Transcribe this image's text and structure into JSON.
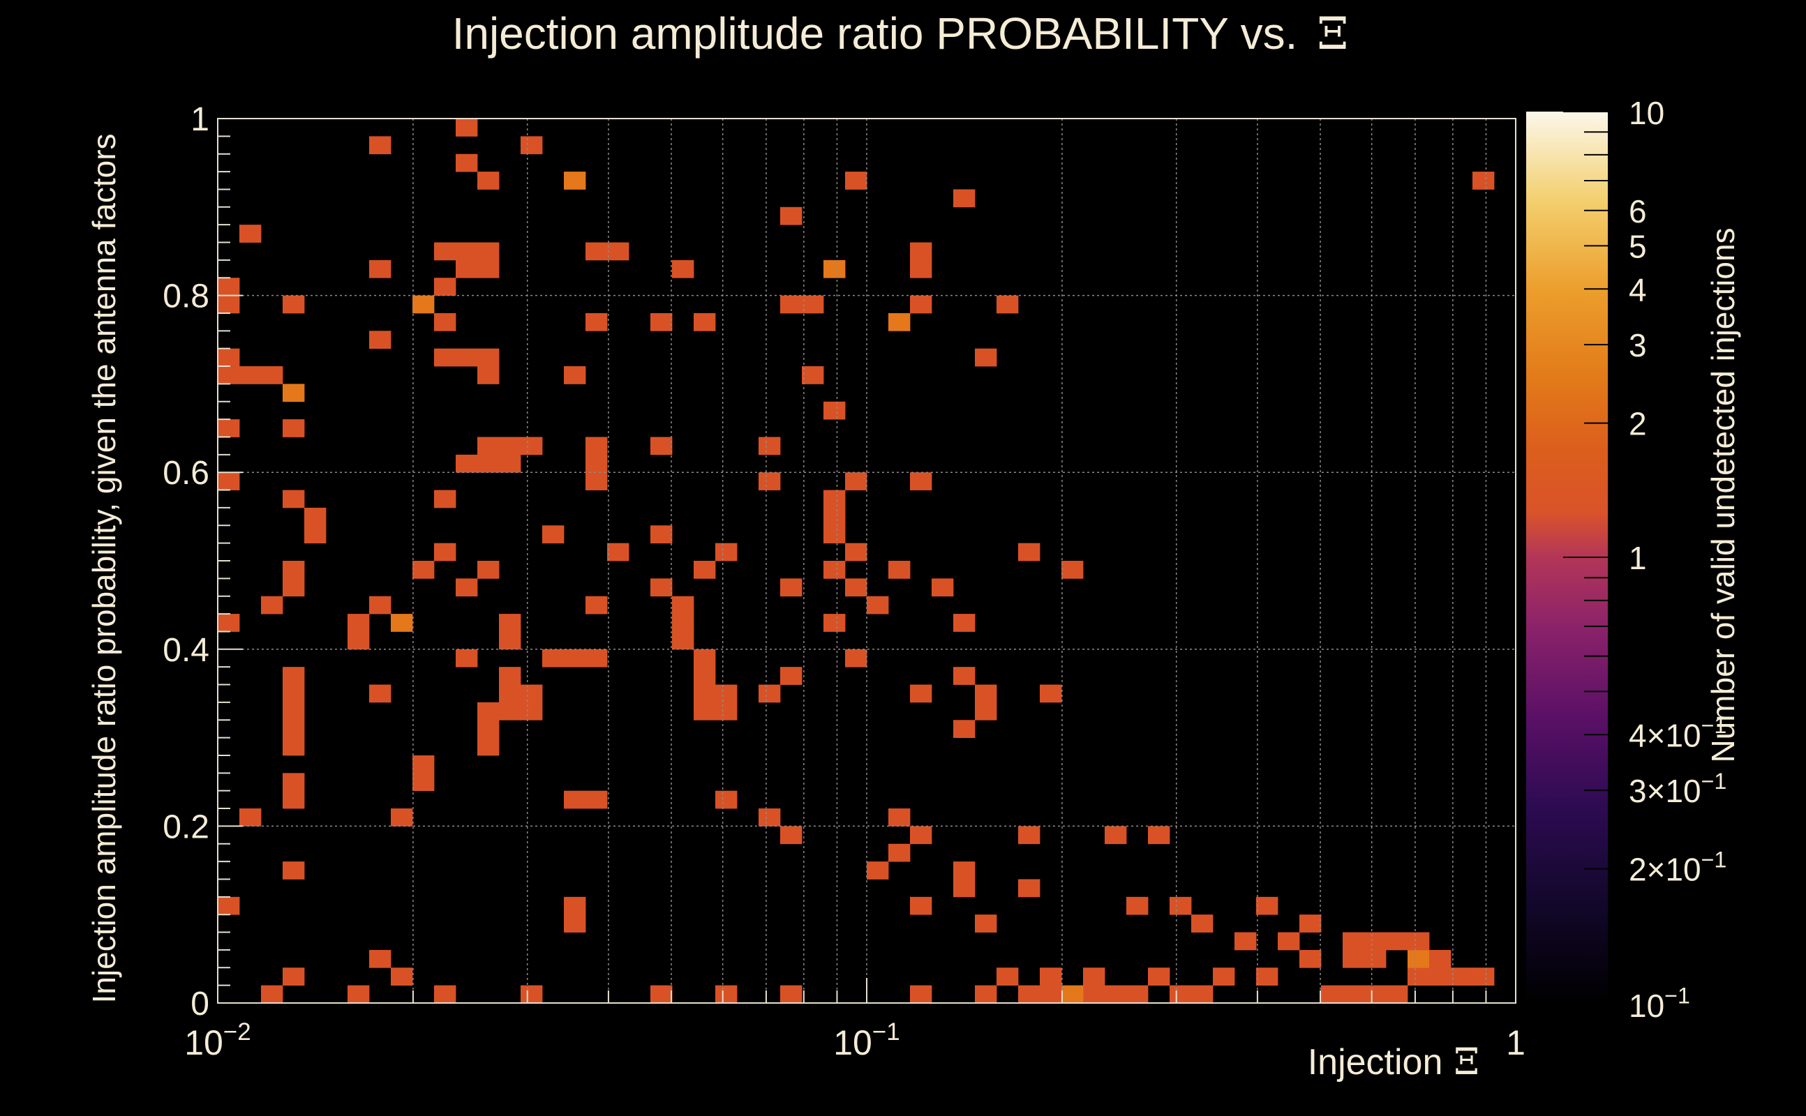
{
  "chart_data": {
    "type": "heatmap",
    "title": "Injection amplitude ratio PROBABILITY vs.",
    "title_symbol": "Ξ",
    "xlabel": "Injection",
    "xlabel_symbol": "Ξ",
    "ylabel": "Injection amplitude ratio probability, given the antenna factors",
    "zlabel": "Number of valid undetected injections",
    "x_scale": "log",
    "x_range": [
      0.01,
      1
    ],
    "y_range": [
      0,
      1
    ],
    "z_scale": "log",
    "z_range": [
      0.1,
      10
    ],
    "x_bins": 60,
    "y_bins": 50,
    "grid": true,
    "x_ticks": [
      {
        "value": 0.01,
        "mant": "10",
        "exp": "−2"
      },
      {
        "value": 0.1,
        "mant": "10",
        "exp": "−1"
      },
      {
        "value": 1,
        "mant": "1",
        "exp": ""
      }
    ],
    "y_ticks": [
      {
        "value": 0,
        "label": "0"
      },
      {
        "value": 0.2,
        "label": "0.2"
      },
      {
        "value": 0.4,
        "label": "0.4"
      },
      {
        "value": 0.6,
        "label": "0.6"
      },
      {
        "value": 0.8,
        "label": "0.8"
      },
      {
        "value": 1,
        "label": "1"
      }
    ],
    "z_ticks": [
      {
        "value": 10,
        "mant": "10",
        "exp": ""
      },
      {
        "value": 6,
        "mant": "6",
        "exp": ""
      },
      {
        "value": 5,
        "mant": "5",
        "exp": ""
      },
      {
        "value": 4,
        "mant": "4",
        "exp": ""
      },
      {
        "value": 3,
        "mant": "3",
        "exp": ""
      },
      {
        "value": 2,
        "mant": "2",
        "exp": ""
      },
      {
        "value": 1,
        "mant": "1",
        "exp": ""
      },
      {
        "value": 0.4,
        "mant": "4×10",
        "exp": "−1"
      },
      {
        "value": 0.3,
        "mant": "3×10",
        "exp": "−1"
      },
      {
        "value": 0.2,
        "mant": "2×10",
        "exp": "−1"
      },
      {
        "value": 0.1,
        "mant": "10",
        "exp": "−1"
      }
    ],
    "colorscale": [
      "#000000",
      "#1b0b3d",
      "#4b0c6b",
      "#781c6d",
      "#a52c60",
      "#c8414a",
      "#d35a1e",
      "#e08a1c",
      "#f1c446",
      "#fafae6"
    ],
    "cells": [
      [
        11,
        49,
        1
      ],
      [
        7,
        48,
        1
      ],
      [
        14,
        48,
        1
      ],
      [
        11,
        47,
        1
      ],
      [
        12,
        46,
        1
      ],
      [
        16,
        46,
        2
      ],
      [
        29,
        46,
        1
      ],
      [
        34,
        45,
        1
      ],
      [
        26,
        44,
        1
      ],
      [
        1,
        43,
        1
      ],
      [
        10,
        42,
        1
      ],
      [
        11,
        42,
        1
      ],
      [
        12,
        42,
        1
      ],
      [
        17,
        42,
        1
      ],
      [
        18,
        42,
        1
      ],
      [
        32,
        42,
        1
      ],
      [
        7,
        41,
        1
      ],
      [
        11,
        41,
        1
      ],
      [
        12,
        41,
        1
      ],
      [
        21,
        41,
        1
      ],
      [
        28,
        41,
        2
      ],
      [
        32,
        41,
        1
      ],
      [
        0,
        40,
        1
      ],
      [
        10,
        40,
        1
      ],
      [
        0,
        39,
        1
      ],
      [
        3,
        39,
        1
      ],
      [
        9,
        39,
        2
      ],
      [
        26,
        39,
        1
      ],
      [
        27,
        39,
        1
      ],
      [
        32,
        39,
        1
      ],
      [
        36,
        39,
        1
      ],
      [
        10,
        38,
        1
      ],
      [
        17,
        38,
        1
      ],
      [
        20,
        38,
        1
      ],
      [
        22,
        38,
        1
      ],
      [
        31,
        38,
        2
      ],
      [
        7,
        37,
        1
      ],
      [
        0,
        36,
        1
      ],
      [
        10,
        36,
        1
      ],
      [
        11,
        36,
        1
      ],
      [
        12,
        36,
        1
      ],
      [
        35,
        36,
        1
      ],
      [
        0,
        35,
        1
      ],
      [
        1,
        35,
        1
      ],
      [
        2,
        35,
        1
      ],
      [
        12,
        35,
        1
      ],
      [
        16,
        35,
        1
      ],
      [
        27,
        35,
        1
      ],
      [
        3,
        34,
        2
      ],
      [
        28,
        33,
        1
      ],
      [
        0,
        32,
        1
      ],
      [
        3,
        32,
        1
      ],
      [
        12,
        31,
        1
      ],
      [
        13,
        31,
        1
      ],
      [
        14,
        31,
        1
      ],
      [
        17,
        31,
        1
      ],
      [
        20,
        31,
        1
      ],
      [
        25,
        31,
        1
      ],
      [
        11,
        30,
        1
      ],
      [
        12,
        30,
        1
      ],
      [
        13,
        30,
        1
      ],
      [
        17,
        30,
        1
      ],
      [
        0,
        29,
        1
      ],
      [
        17,
        29,
        1
      ],
      [
        25,
        29,
        1
      ],
      [
        29,
        29,
        1
      ],
      [
        32,
        29,
        1
      ],
      [
        3,
        28,
        1
      ],
      [
        10,
        28,
        1
      ],
      [
        28,
        28,
        1
      ],
      [
        4,
        27,
        1
      ],
      [
        28,
        27,
        1
      ],
      [
        4,
        26,
        1
      ],
      [
        15,
        26,
        1
      ],
      [
        20,
        26,
        1
      ],
      [
        28,
        26,
        1
      ],
      [
        10,
        25,
        1
      ],
      [
        18,
        25,
        1
      ],
      [
        23,
        25,
        1
      ],
      [
        29,
        25,
        1
      ],
      [
        37,
        25,
        1
      ],
      [
        3,
        24,
        1
      ],
      [
        9,
        24,
        1
      ],
      [
        12,
        24,
        1
      ],
      [
        22,
        24,
        1
      ],
      [
        28,
        24,
        1
      ],
      [
        31,
        24,
        1
      ],
      [
        39,
        24,
        1
      ],
      [
        3,
        23,
        1
      ],
      [
        11,
        23,
        1
      ],
      [
        20,
        23,
        1
      ],
      [
        26,
        23,
        1
      ],
      [
        29,
        23,
        1
      ],
      [
        33,
        23,
        1
      ],
      [
        2,
        22,
        1
      ],
      [
        7,
        22,
        1
      ],
      [
        17,
        22,
        1
      ],
      [
        21,
        22,
        1
      ],
      [
        30,
        22,
        1
      ],
      [
        0,
        21,
        1
      ],
      [
        6,
        21,
        1
      ],
      [
        8,
        21,
        2
      ],
      [
        13,
        21,
        1
      ],
      [
        21,
        21,
        1
      ],
      [
        28,
        21,
        1
      ],
      [
        34,
        21,
        1
      ],
      [
        6,
        20,
        1
      ],
      [
        13,
        20,
        1
      ],
      [
        21,
        20,
        1
      ],
      [
        11,
        19,
        1
      ],
      [
        15,
        19,
        1
      ],
      [
        16,
        19,
        1
      ],
      [
        17,
        19,
        1
      ],
      [
        22,
        19,
        1
      ],
      [
        29,
        19,
        1
      ],
      [
        3,
        18,
        1
      ],
      [
        13,
        18,
        1
      ],
      [
        22,
        18,
        1
      ],
      [
        26,
        18,
        1
      ],
      [
        34,
        18,
        1
      ],
      [
        3,
        17,
        1
      ],
      [
        7,
        17,
        1
      ],
      [
        13,
        17,
        1
      ],
      [
        14,
        17,
        1
      ],
      [
        22,
        17,
        1
      ],
      [
        23,
        17,
        1
      ],
      [
        25,
        17,
        1
      ],
      [
        32,
        17,
        1
      ],
      [
        35,
        17,
        1
      ],
      [
        38,
        17,
        1
      ],
      [
        3,
        16,
        1
      ],
      [
        12,
        16,
        1
      ],
      [
        13,
        16,
        1
      ],
      [
        14,
        16,
        1
      ],
      [
        22,
        16,
        1
      ],
      [
        23,
        16,
        1
      ],
      [
        35,
        16,
        1
      ],
      [
        3,
        15,
        1
      ],
      [
        12,
        15,
        1
      ],
      [
        34,
        15,
        1
      ],
      [
        3,
        14,
        1
      ],
      [
        12,
        14,
        1
      ],
      [
        9,
        13,
        1
      ],
      [
        3,
        12,
        1
      ],
      [
        9,
        12,
        1
      ],
      [
        3,
        11,
        1
      ],
      [
        16,
        11,
        1
      ],
      [
        17,
        11,
        1
      ],
      [
        23,
        11,
        1
      ],
      [
        1,
        10,
        1
      ],
      [
        8,
        10,
        1
      ],
      [
        25,
        10,
        1
      ],
      [
        31,
        10,
        1
      ],
      [
        26,
        9,
        1
      ],
      [
        32,
        9,
        1
      ],
      [
        31,
        8,
        1
      ],
      [
        43,
        9,
        1
      ],
      [
        41,
        9,
        1
      ],
      [
        37,
        9,
        1
      ],
      [
        3,
        7,
        1
      ],
      [
        30,
        7,
        1
      ],
      [
        34,
        7,
        1
      ],
      [
        34,
        6,
        1
      ],
      [
        37,
        6,
        1
      ],
      [
        16,
        5,
        1
      ],
      [
        32,
        5,
        1
      ],
      [
        16,
        4,
        1
      ],
      [
        35,
        4,
        1
      ],
      [
        0,
        5,
        1
      ],
      [
        42,
        5,
        1
      ],
      [
        44,
        5,
        1
      ],
      [
        45,
        4,
        1
      ],
      [
        47,
        3,
        1
      ],
      [
        49,
        3,
        1
      ],
      [
        50,
        2,
        1
      ],
      [
        52,
        2,
        1
      ],
      [
        53,
        2,
        1
      ],
      [
        55,
        1,
        1
      ],
      [
        56,
        1,
        1
      ],
      [
        3,
        1,
        1
      ],
      [
        2,
        0,
        1
      ],
      [
        6,
        0,
        1
      ],
      [
        10,
        0,
        1
      ],
      [
        14,
        0,
        1
      ],
      [
        20,
        0,
        1
      ],
      [
        23,
        0,
        1
      ],
      [
        26,
        0,
        1
      ],
      [
        32,
        0,
        1
      ],
      [
        35,
        0,
        1
      ],
      [
        38,
        0,
        1
      ],
      [
        46,
        1,
        1
      ],
      [
        48,
        1,
        1
      ],
      [
        36,
        1,
        1
      ],
      [
        44,
        0,
        1
      ],
      [
        45,
        0,
        1
      ],
      [
        51,
        0,
        1
      ],
      [
        52,
        0,
        1
      ],
      [
        53,
        0,
        1
      ],
      [
        54,
        0,
        1
      ],
      [
        58,
        46,
        1
      ],
      [
        7,
        2,
        1
      ],
      [
        8,
        1,
        1
      ],
      [
        48,
        5,
        1
      ],
      [
        50,
        4,
        1
      ],
      [
        52,
        3,
        1
      ],
      [
        53,
        3,
        1
      ],
      [
        54,
        3,
        1
      ],
      [
        55,
        2,
        2
      ],
      [
        55,
        3,
        1
      ],
      [
        56,
        2,
        1
      ],
      [
        57,
        1,
        1
      ],
      [
        58,
        1,
        1
      ],
      [
        43,
        1,
        1
      ],
      [
        41,
        0,
        1
      ],
      [
        42,
        0,
        1
      ],
      [
        40,
        0,
        1
      ],
      [
        39,
        0,
        2
      ],
      [
        40,
        1,
        1
      ],
      [
        38,
        1,
        1
      ],
      [
        37,
        0,
        1
      ]
    ]
  }
}
